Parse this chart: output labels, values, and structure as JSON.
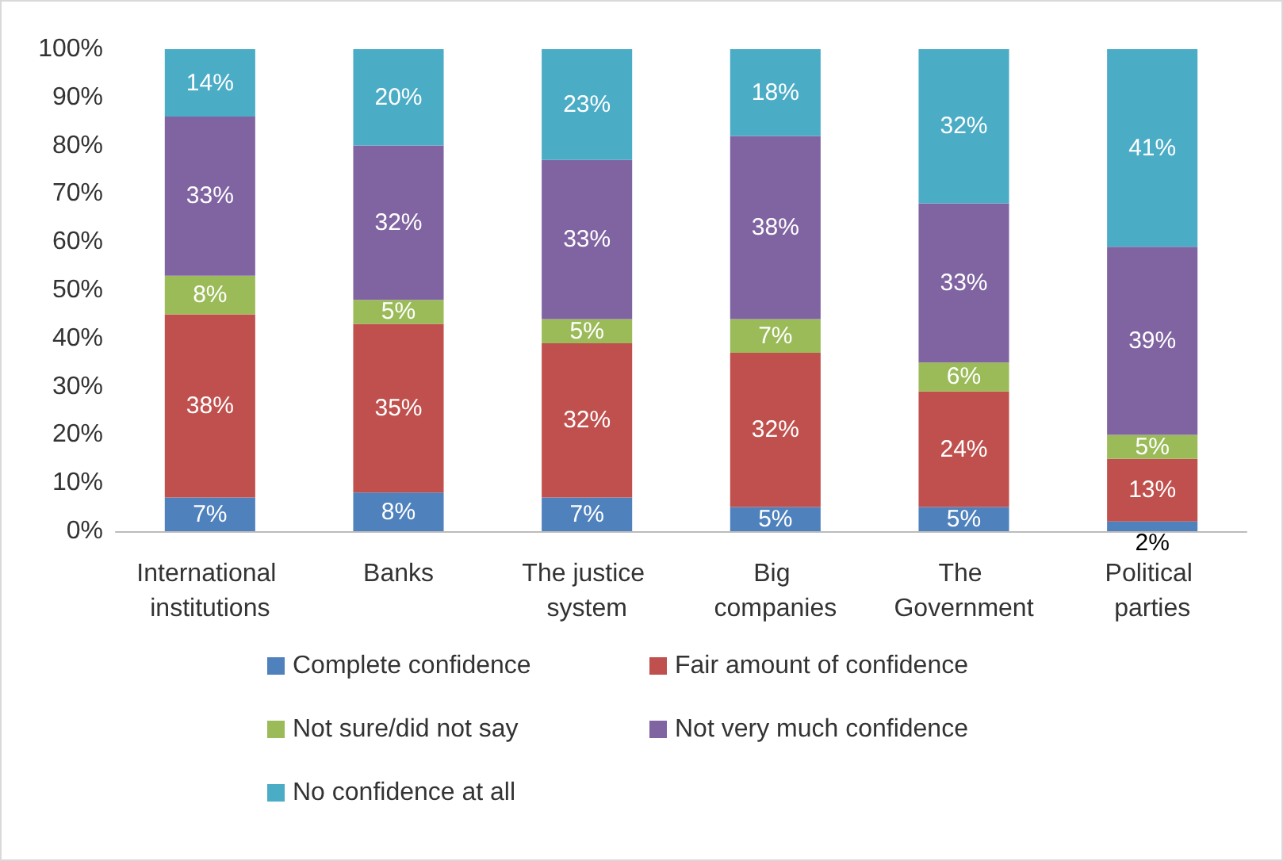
{
  "chart_data": {
    "type": "bar",
    "stacked": true,
    "categories": [
      "International institutions",
      "Banks",
      "The justice system",
      "Big companies",
      "The Government",
      "Political parties"
    ],
    "series": [
      {
        "name": "Complete confidence",
        "color": "#4f81bd",
        "values": [
          7,
          8,
          7,
          5,
          5,
          2
        ],
        "value_labels": [
          "7%",
          "8%",
          "7%",
          "5%",
          "5%",
          "2%"
        ]
      },
      {
        "name": "Fair amount of confidence",
        "color": "#c0504d",
        "values": [
          38,
          35,
          32,
          32,
          24,
          13
        ],
        "value_labels": [
          "38%",
          "35%",
          "32%",
          "32%",
          "24%",
          "13%"
        ]
      },
      {
        "name": "Not sure/did not say",
        "color": "#9bbb59",
        "values": [
          8,
          5,
          5,
          7,
          6,
          5
        ],
        "value_labels": [
          "8%",
          "5%",
          "5%",
          "7%",
          "6%",
          "5%"
        ]
      },
      {
        "name": "Not very much confidence",
        "color": "#8064a2",
        "values": [
          33,
          32,
          33,
          38,
          33,
          39
        ],
        "value_labels": [
          "33%",
          "32%",
          "33%",
          "38%",
          "33%",
          "39%"
        ]
      },
      {
        "name": "No confidence at all",
        "color": "#4bacc6",
        "values": [
          14,
          20,
          23,
          18,
          32,
          41
        ],
        "value_labels": [
          "14%",
          "20%",
          "23%",
          "18%",
          "32%",
          "41%"
        ]
      }
    ],
    "ylim": [
      0,
      100
    ],
    "yticks": [
      {
        "value": 0,
        "label": "0%"
      },
      {
        "value": 10,
        "label": "10%"
      },
      {
        "value": 20,
        "label": "20%"
      },
      {
        "value": 30,
        "label": "30%"
      },
      {
        "value": 40,
        "label": "40%"
      },
      {
        "value": 50,
        "label": "50%"
      },
      {
        "value": 60,
        "label": "60%"
      },
      {
        "value": 70,
        "label": "70%"
      },
      {
        "value": 80,
        "label": "80%"
      },
      {
        "value": 90,
        "label": "90%"
      },
      {
        "value": 100,
        "label": "100%"
      }
    ],
    "legend": "bottom",
    "grid": false
  }
}
